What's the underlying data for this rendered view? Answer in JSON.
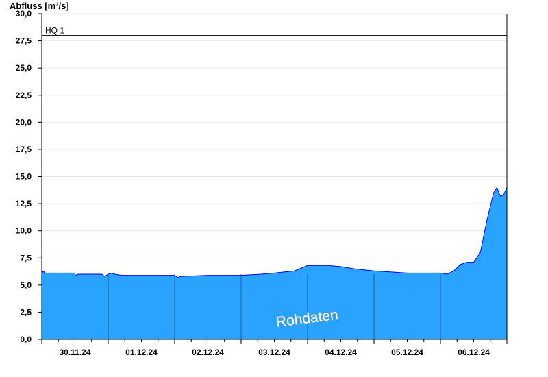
{
  "chart_data": {
    "type": "area",
    "title": "",
    "ylabel": "Abfluss [m³/s]",
    "xlabel": "",
    "ylim": [
      0,
      30
    ],
    "xlim": [
      0,
      7
    ],
    "grid": true,
    "y_ticks": [
      "0,0",
      "2,5",
      "5,0",
      "7,5",
      "10,0",
      "12,5",
      "15,0",
      "17,5",
      "20,0",
      "22,5",
      "25,0",
      "27,5",
      "30,0"
    ],
    "x_ticks": [
      {
        "label": "30.11.24",
        "x": 0.5
      },
      {
        "label": "01.12.24",
        "x": 1.5
      },
      {
        "label": "02.12.24",
        "x": 2.5
      },
      {
        "label": "03.12.24",
        "x": 3.5
      },
      {
        "label": "04.12.24",
        "x": 4.5
      },
      {
        "label": "05.12.24",
        "x": 5.5
      },
      {
        "label": "06.12.24",
        "x": 6.5
      }
    ],
    "day_boundaries": [
      1,
      2,
      3,
      4,
      5,
      6
    ],
    "reference_line": {
      "label": "HQ 1",
      "value": 28.0
    },
    "watermark": "Rohdaten",
    "series": [
      {
        "fill": "#29a3ff",
        "stroke": "#0000ff",
        "x": [
          0.0,
          0.02,
          0.05,
          0.1,
          0.5,
          0.5,
          0.55,
          0.6,
          0.9,
          0.95,
          1.0,
          1.05,
          1.1,
          1.2,
          1.5,
          2.0,
          2.05,
          2.08,
          2.5,
          3.0,
          3.3,
          3.5,
          3.8,
          4.0,
          4.3,
          4.5,
          4.7,
          5.0,
          5.5,
          6.0,
          6.1,
          6.2,
          6.3,
          6.4,
          6.5,
          6.6,
          6.7,
          6.8,
          6.85,
          6.9,
          6.95,
          7.0
        ],
        "values": [
          6.0,
          6.3,
          6.1,
          6.1,
          6.1,
          5.9,
          6.0,
          6.0,
          6.0,
          5.8,
          6.0,
          6.1,
          6.0,
          5.9,
          5.9,
          5.9,
          5.7,
          5.8,
          5.9,
          5.9,
          6.0,
          6.1,
          6.3,
          6.8,
          6.8,
          6.7,
          6.5,
          6.3,
          6.1,
          6.1,
          6.0,
          6.3,
          6.9,
          7.1,
          7.1,
          8.0,
          11.0,
          13.5,
          14.0,
          13.2,
          13.3,
          14.0
        ]
      }
    ]
  }
}
